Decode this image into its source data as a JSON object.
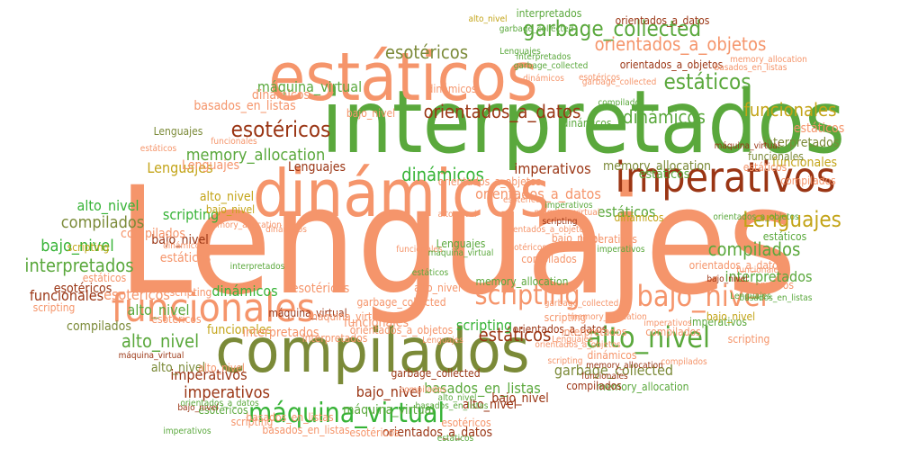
{
  "colors": {
    "salmon": "#f5956b",
    "green": "#5aa83c",
    "olive": "#7b8a38",
    "rust": "#9a3514",
    "bright_green": "#36b336",
    "mustard": "#c3a418",
    "background": "#ffffff"
  },
  "words": [
    {
      "text": "Lenguajes",
      "color": "salmon"
    },
    {
      "text": "interpretados",
      "color": "green"
    },
    {
      "text": "estáticos",
      "color": "salmon"
    },
    {
      "text": "dinámicos",
      "color": "salmon"
    },
    {
      "text": "compilados",
      "color": "olive"
    },
    {
      "text": "imperativos",
      "color": "rust"
    },
    {
      "text": "funcionales",
      "color": "salmon"
    },
    {
      "text": "alto_nivel",
      "color": "green"
    },
    {
      "text": "bajo_nivel",
      "color": "salmon"
    },
    {
      "text": "scripting",
      "color": "salmon"
    },
    {
      "text": "máquina_virtual",
      "color": "bright_green"
    },
    {
      "text": "garbage_collected",
      "color": "green"
    },
    {
      "text": "esotéricos",
      "color": "rust"
    },
    {
      "text": "Lenguajes",
      "color": "mustard"
    },
    {
      "text": "estáticos",
      "color": "green"
    },
    {
      "text": "orientados_a_objetos",
      "color": "salmon"
    },
    {
      "text": "orientados_a_datos",
      "color": "rust"
    },
    {
      "text": "dinámicos",
      "color": "green"
    },
    {
      "text": "compilados",
      "color": "green"
    },
    {
      "text": "memory_allocation",
      "color": "green"
    },
    {
      "text": "interpretados",
      "color": "green"
    },
    {
      "text": "funcionales",
      "color": "rust"
    },
    {
      "text": "esotéricos",
      "color": "olive"
    },
    {
      "text": "dinámicos",
      "color": "bright_green"
    },
    {
      "text": "funcionales",
      "color": "mustard"
    },
    {
      "text": "máquina_virtual",
      "color": "green"
    },
    {
      "text": "alto_nivel",
      "color": "green"
    },
    {
      "text": "bajo_nivel",
      "color": "bright_green"
    },
    {
      "text": "compilados",
      "color": "olive"
    },
    {
      "text": "estáticos",
      "color": "rust"
    },
    {
      "text": "scripting",
      "color": "bright_green"
    },
    {
      "text": "basados_en_listas",
      "color": "green"
    },
    {
      "text": "imperativos",
      "color": "rust"
    },
    {
      "text": "orientados_a_datos",
      "color": "salmon"
    },
    {
      "text": "bajo_nivel",
      "color": "rust"
    },
    {
      "text": "garbage_collected",
      "color": "olive"
    },
    {
      "text": "estáticos",
      "color": "green"
    },
    {
      "text": "esotéricos",
      "color": "salmon"
    },
    {
      "text": "imperativos",
      "color": "rust"
    },
    {
      "text": "Lenguajes",
      "color": "mustard"
    },
    {
      "text": "interpretados",
      "color": "green"
    },
    {
      "text": "alto_nivel",
      "color": "bright_green"
    },
    {
      "text": "scripting",
      "color": "bright_green"
    },
    {
      "text": "bajo_nivel",
      "color": "rust"
    },
    {
      "text": "memory_allocation",
      "color": "olive"
    },
    {
      "text": "funcionales",
      "color": "mustard"
    },
    {
      "text": "estáticos",
      "color": "salmon"
    },
    {
      "text": "orientados_a_objetos",
      "color": "salmon"
    },
    {
      "text": "dinámicos",
      "color": "bright_green"
    },
    {
      "text": "basados_en_listas",
      "color": "salmon"
    },
    {
      "text": "esotéricos",
      "color": "salmon"
    },
    {
      "text": "scripting",
      "color": "salmon"
    },
    {
      "text": "alto_nivel",
      "color": "green"
    },
    {
      "text": "memory_allocation",
      "color": "green"
    },
    {
      "text": "interpretados",
      "color": "olive"
    },
    {
      "text": "compilados",
      "color": "salmon"
    },
    {
      "text": "imperativos",
      "color": "rust"
    },
    {
      "text": "orientados_a_datos",
      "color": "rust"
    },
    {
      "text": "máquina_virtual",
      "color": "green"
    },
    {
      "text": "bajo_nivel",
      "color": "rust"
    },
    {
      "text": "estáticos",
      "color": "salmon"
    },
    {
      "text": "Lenguajes",
      "color": "rust"
    },
    {
      "text": "esotéricos",
      "color": "rust"
    },
    {
      "text": "alto_nivel",
      "color": "mustard"
    },
    {
      "text": "dinámicos",
      "color": "salmon"
    },
    {
      "text": "compilados",
      "color": "olive"
    },
    {
      "text": "garbage_collected",
      "color": "green"
    },
    {
      "text": "basados_en_listas",
      "color": "salmon"
    },
    {
      "text": "scripting",
      "color": "mustard"
    },
    {
      "text": "funcionales",
      "color": "mustard"
    },
    {
      "text": "interpretados",
      "color": "salmon"
    },
    {
      "text": "memory_allocation",
      "color": "green"
    },
    {
      "text": "orientados_a_objetos",
      "color": "rust"
    },
    {
      "text": "imperativos",
      "color": "salmon"
    },
    {
      "text": "estáticos",
      "color": "salmon"
    },
    {
      "text": "esotéricos",
      "color": "salmon"
    },
    {
      "text": "bajo_nivel",
      "color": "salmon"
    },
    {
      "text": "alto_nivel",
      "color": "olive"
    },
    {
      "text": "máquina_virtual",
      "color": "rust"
    },
    {
      "text": "dinámicos",
      "color": "green"
    },
    {
      "text": "compilados",
      "color": "salmon"
    },
    {
      "text": "Lenguajes",
      "color": "salmon"
    },
    {
      "text": "orientados_a_datos",
      "color": "rust"
    },
    {
      "text": "garbage_collected",
      "color": "salmon"
    },
    {
      "text": "funcionales",
      "color": "salmon"
    },
    {
      "text": "scripting",
      "color": "salmon"
    },
    {
      "text": "interpretados",
      "color": "salmon"
    },
    {
      "text": "imperativos",
      "color": "green"
    },
    {
      "text": "basados_en_listas",
      "color": "salmon"
    },
    {
      "text": "memory_allocation",
      "color": "rust"
    },
    {
      "text": "estáticos",
      "color": "green"
    },
    {
      "text": "esotéricos",
      "color": "salmon"
    },
    {
      "text": "alto_nivel",
      "color": "rust"
    },
    {
      "text": "bajo_nivel",
      "color": "mustard"
    },
    {
      "text": "dinámicos",
      "color": "salmon"
    },
    {
      "text": "compilados",
      "color": "salmon"
    },
    {
      "text": "orientados_a_objetos",
      "color": "green"
    },
    {
      "text": "Lenguajes",
      "color": "green"
    },
    {
      "text": "máquina_virtual",
      "color": "salmon"
    },
    {
      "text": "scripting",
      "color": "salmon"
    },
    {
      "text": "funcionales",
      "color": "olive"
    },
    {
      "text": "imperativos",
      "color": "salmon"
    },
    {
      "text": "esotéricos",
      "color": "green"
    },
    {
      "text": "orientados_a_datos",
      "color": "salmon"
    },
    {
      "text": "interpretados",
      "color": "salmon"
    },
    {
      "text": "garbage_collected",
      "color": "rust"
    },
    {
      "text": "alto_nivel",
      "color": "mustard"
    },
    {
      "text": "estáticos",
      "color": "green"
    },
    {
      "text": "bajo_nivel",
      "color": "salmon"
    },
    {
      "text": "dinámicos",
      "color": "salmon"
    },
    {
      "text": "compilados",
      "color": "rust"
    },
    {
      "text": "Lenguajes",
      "color": "olive"
    },
    {
      "text": "memory_allocation",
      "color": "salmon"
    },
    {
      "text": "orientados_a_objetos",
      "color": "salmon"
    },
    {
      "text": "máquina_virtual",
      "color": "rust"
    },
    {
      "text": "scripting",
      "color": "salmon"
    },
    {
      "text": "imperativos",
      "color": "green"
    },
    {
      "text": "basados_en_listas",
      "color": "salmon"
    },
    {
      "text": "funcionales",
      "color": "salmon"
    },
    {
      "text": "esotéricos",
      "color": "salmon"
    },
    {
      "text": "dinámicos",
      "color": "mustard"
    },
    {
      "text": "alto_nivel",
      "color": "salmon"
    },
    {
      "text": "bajo_nivel",
      "color": "mustard"
    },
    {
      "text": "Lenguajes",
      "color": "green"
    },
    {
      "text": "compilados",
      "color": "salmon"
    },
    {
      "text": "estáticos",
      "color": "salmon"
    },
    {
      "text": "orientados_a_datos",
      "color": "rust"
    },
    {
      "text": "interpretados",
      "color": "green"
    },
    {
      "text": "scripting",
      "color": "salmon"
    },
    {
      "text": "máquina_virtual",
      "color": "rust"
    },
    {
      "text": "garbage_collected",
      "color": "salmon"
    },
    {
      "text": "imperativos",
      "color": "green"
    },
    {
      "text": "esotéricos",
      "color": "salmon"
    },
    {
      "text": "funcionales",
      "color": "salmon"
    },
    {
      "text": "basados_en_listas",
      "color": "green"
    },
    {
      "text": "alto_nivel",
      "color": "salmon"
    },
    {
      "text": "estáticos",
      "color": "green"
    },
    {
      "text": "dinámicos",
      "color": "salmon"
    },
    {
      "text": "orientados_a_objetos",
      "color": "salmon"
    },
    {
      "text": "compilados",
      "color": "green"
    },
    {
      "text": "memory_allocation",
      "color": "salmon"
    },
    {
      "text": "Lenguajes",
      "color": "salmon"
    },
    {
      "text": "bajo_nivel",
      "color": "rust"
    },
    {
      "text": "interpretados",
      "color": "green"
    },
    {
      "text": "scripting",
      "color": "rust"
    },
    {
      "text": "imperativos",
      "color": "salmon"
    },
    {
      "text": "máquina_virtual",
      "color": "green"
    },
    {
      "text": "esotéricos",
      "color": "salmon"
    },
    {
      "text": "funcionales",
      "color": "rust"
    },
    {
      "text": "dinámicos",
      "color": "salmon"
    },
    {
      "text": "alto_nivel",
      "color": "green"
    },
    {
      "text": "garbage_collected",
      "color": "green"
    },
    {
      "text": "estáticos",
      "color": "salmon"
    },
    {
      "text": "compilados",
      "color": "salmon"
    },
    {
      "text": "orientados_a_datos",
      "color": "green"
    },
    {
      "text": "basados_en_listas",
      "color": "green"
    },
    {
      "text": "Lenguajes",
      "color": "salmon"
    },
    {
      "text": "memory_allocation",
      "color": "salmon"
    },
    {
      "text": "imperativos",
      "color": "green"
    },
    {
      "text": "scripting",
      "color": "salmon"
    },
    {
      "text": "bajo_nivel",
      "color": "rust"
    },
    {
      "text": "dinámicos",
      "color": "salmon"
    },
    {
      "text": "esotéricos",
      "color": "salmon"
    },
    {
      "text": "interpretados",
      "color": "green"
    },
    {
      "text": "funcionales",
      "color": "salmon"
    },
    {
      "text": "máquina_virtual",
      "color": "salmon"
    },
    {
      "text": "alto_nivel",
      "color": "salmon"
    },
    {
      "text": "estáticos",
      "color": "green"
    },
    {
      "text": "compilados",
      "color": "salmon"
    },
    {
      "text": "orientados_a_objetos",
      "color": "salmon"
    },
    {
      "text": "garbage_collected",
      "color": "salmon"
    },
    {
      "text": "Lenguajes",
      "color": "green"
    },
    {
      "text": "imperativos",
      "color": "salmon"
    },
    {
      "text": "basados_en_listas",
      "color": "salmon"
    },
    {
      "text": "scripting",
      "color": "salmon"
    },
    {
      "text": "dinámicos",
      "color": "salmon"
    }
  ]
}
